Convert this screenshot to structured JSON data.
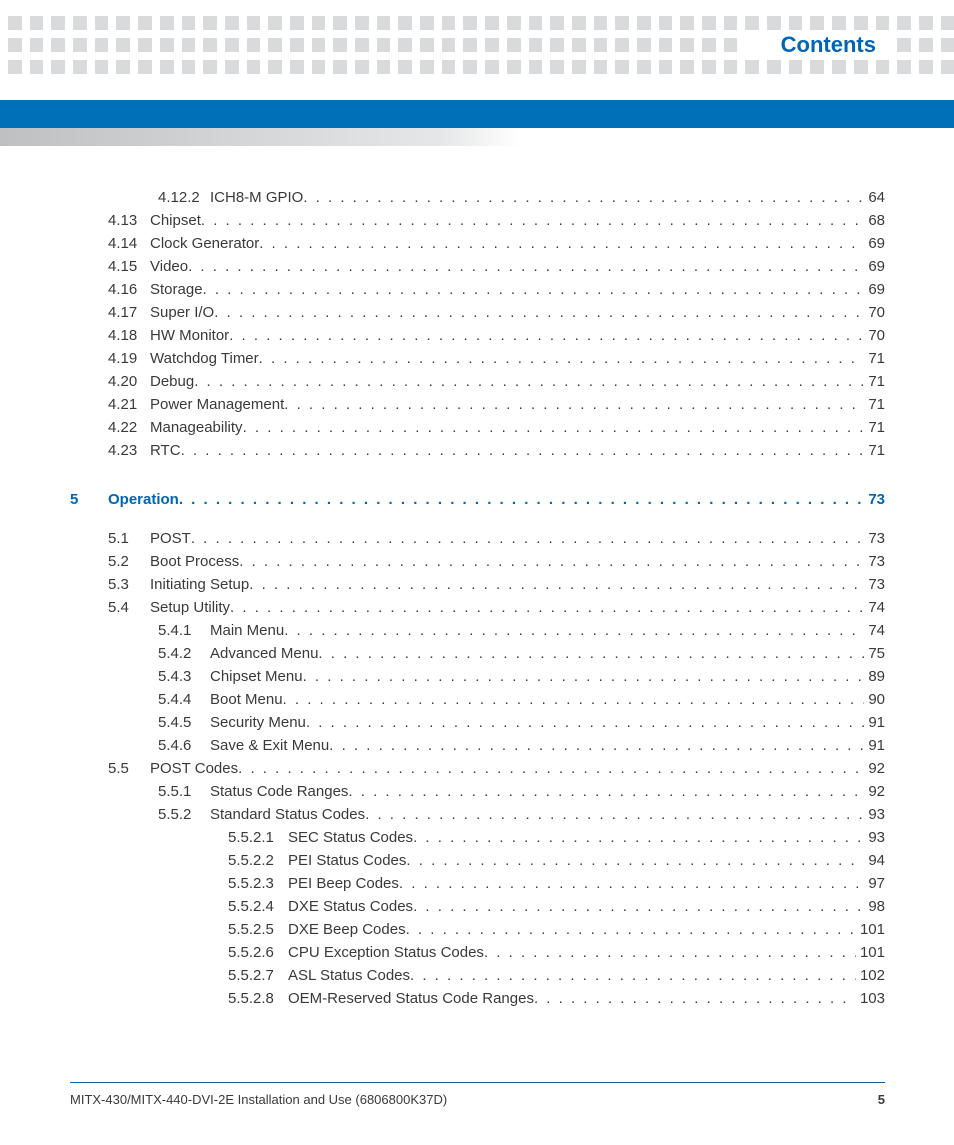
{
  "colors": {
    "accent": "#0066b3",
    "bar": "#0071b8",
    "dot": "#d9dadb",
    "text": "#3a3a3a",
    "background": "#ffffff"
  },
  "header": {
    "title": "Contents"
  },
  "footer": {
    "doc_title": "MITX-430/MITX-440-DVI-2E Installation and Use (6806800K37D)",
    "page_number": "5"
  },
  "toc": [
    {
      "level": 2,
      "num": "4.12.2",
      "title": "ICH8-M GPIO",
      "page": "64"
    },
    {
      "level": 1,
      "num": "4.13",
      "title": "Chipset",
      "page": "68"
    },
    {
      "level": 1,
      "num": "4.14",
      "title": "Clock Generator",
      "page": "69"
    },
    {
      "level": 1,
      "num": "4.15",
      "title": "Video",
      "page": "69"
    },
    {
      "level": 1,
      "num": "4.16",
      "title": "Storage",
      "page": "69"
    },
    {
      "level": 1,
      "num": "4.17",
      "title": "Super I/O",
      "page": "70"
    },
    {
      "level": 1,
      "num": "4.18",
      "title": "HW Monitor",
      "page": "70"
    },
    {
      "level": 1,
      "num": "4.19",
      "title": "Watchdog Timer",
      "page": "71"
    },
    {
      "level": 1,
      "num": "4.20",
      "title": "Debug",
      "page": "71"
    },
    {
      "level": 1,
      "num": "4.21",
      "title": "Power Management",
      "page": "71"
    },
    {
      "level": 1,
      "num": "4.22",
      "title": "Manageability",
      "page": "71"
    },
    {
      "level": 1,
      "num": "4.23",
      "title": "RTC",
      "page": "71"
    },
    {
      "level": 0,
      "num": "5",
      "title": "Operation",
      "page": "73",
      "chapter": true
    },
    {
      "level": 1,
      "num": "5.1",
      "title": "POST",
      "page": "73"
    },
    {
      "level": 1,
      "num": "5.2",
      "title": "Boot Process",
      "page": "73"
    },
    {
      "level": 1,
      "num": "5.3",
      "title": "Initiating Setup",
      "page": "73"
    },
    {
      "level": 1,
      "num": "5.4",
      "title": "Setup Utility",
      "page": "74"
    },
    {
      "level": 2,
      "num": "5.4.1",
      "title": "Main Menu",
      "page": "74"
    },
    {
      "level": 2,
      "num": "5.4.2",
      "title": "Advanced Menu",
      "page": "75"
    },
    {
      "level": 2,
      "num": "5.4.3",
      "title": "Chipset Menu",
      "page": "89"
    },
    {
      "level": 2,
      "num": "5.4.4",
      "title": "Boot Menu",
      "page": "90"
    },
    {
      "level": 2,
      "num": "5.4.5",
      "title": "Security Menu",
      "page": "91"
    },
    {
      "level": 2,
      "num": "5.4.6",
      "title": "Save & Exit Menu",
      "page": "91"
    },
    {
      "level": 1,
      "num": "5.5",
      "title": "POST Codes",
      "page": "92"
    },
    {
      "level": 2,
      "num": "5.5.1",
      "title": "Status Code Ranges",
      "page": "92"
    },
    {
      "level": 2,
      "num": "5.5.2",
      "title": "Standard Status Codes",
      "page": "93"
    },
    {
      "level": 3,
      "num": "5.5.2.1",
      "title": "SEC Status Codes",
      "page": "93"
    },
    {
      "level": 3,
      "num": "5.5.2.2",
      "title": "PEI Status Codes",
      "page": "94"
    },
    {
      "level": 3,
      "num": "5.5.2.3",
      "title": "PEI Beep Codes",
      "page": "97"
    },
    {
      "level": 3,
      "num": "5.5.2.4",
      "title": "DXE Status Codes",
      "page": "98"
    },
    {
      "level": 3,
      "num": "5.5.2.5",
      "title": "DXE Beep Codes",
      "page": "101"
    },
    {
      "level": 3,
      "num": "5.5.2.6",
      "title": "CPU Exception Status Codes",
      "page": "101"
    },
    {
      "level": 3,
      "num": "5.5.2.7",
      "title": "ASL Status Codes",
      "page": "102"
    },
    {
      "level": 3,
      "num": "5.5.2.8",
      "title": "OEM-Reserved Status Code Ranges",
      "page": "103"
    }
  ]
}
